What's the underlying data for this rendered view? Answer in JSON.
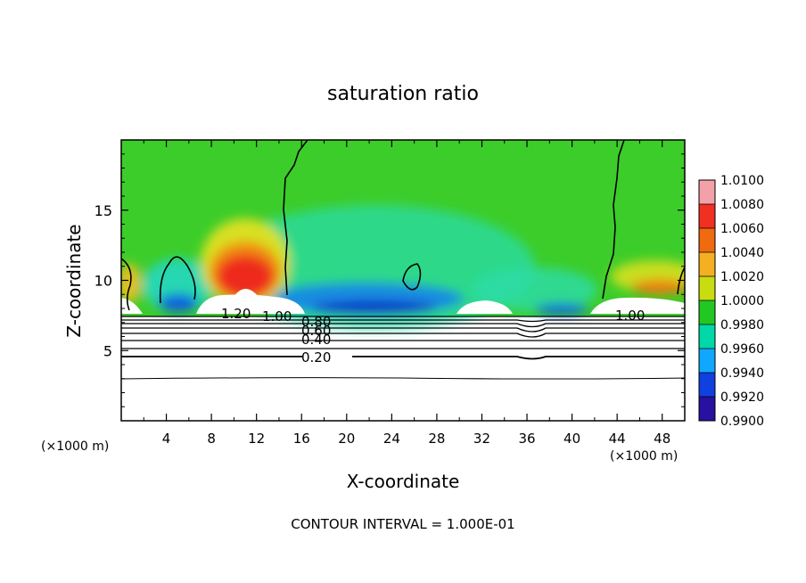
{
  "chart_data": {
    "type": "heatmap",
    "title": "saturation ratio",
    "xlabel": "X-coordinate",
    "ylabel": "Z-coordinate",
    "x_unit_label": "(×1000 m)",
    "y_unit_label": "(×1000 m)",
    "xlim": [
      0,
      50
    ],
    "ylim": [
      0,
      20
    ],
    "x_ticks": [
      4,
      8,
      12,
      16,
      20,
      24,
      28,
      32,
      36,
      40,
      44,
      48
    ],
    "y_ticks": [
      5,
      10,
      15
    ],
    "footer": "CONTOUR INTERVAL = 1.000E-01",
    "colorbar": {
      "levels": [
        "1.0100",
        "1.0080",
        "1.0060",
        "1.0040",
        "1.0020",
        "1.0000",
        "0.9980",
        "0.9960",
        "0.9940",
        "0.9920",
        "0.9900"
      ],
      "colors": [
        "#f4a0a8",
        "#f03020",
        "#f06a10",
        "#f4b020",
        "#c8dc10",
        "#22c822",
        "#00d8a8",
        "#10a8ff",
        "#1040e0",
        "#2810a0",
        "#6a10b4"
      ]
    },
    "contour_labels": [
      {
        "text": "1.20",
        "x": 8.6,
        "z": 7.9
      },
      {
        "text": "1.00",
        "x": 13.8,
        "z": 7.5
      },
      {
        "text": "0.80",
        "x": 17.8,
        "z": 7.1
      },
      {
        "text": "0.60",
        "x": 17.8,
        "z": 6.6
      },
      {
        "text": "0.40",
        "x": 17.8,
        "z": 5.9
      },
      {
        "text": "0.20",
        "x": 17.8,
        "z": 4.6
      },
      {
        "text": "1.00",
        "x": 44.2,
        "z": 7.5
      }
    ],
    "field_regions": [
      {
        "name": "background",
        "value": 1.0
      },
      {
        "name": "supersaturated plume",
        "x_center": 11,
        "z_peak": 13,
        "value_max": 1.01
      },
      {
        "name": "subsaturated band",
        "x_range": [
          17,
          28
        ],
        "z_range": [
          7.5,
          11
        ],
        "value_min": 0.992
      },
      {
        "name": "right supersaturated edge",
        "x_range": [
          44,
          50
        ],
        "z_range": [
          8,
          10
        ],
        "value_max": 1.006
      }
    ]
  }
}
